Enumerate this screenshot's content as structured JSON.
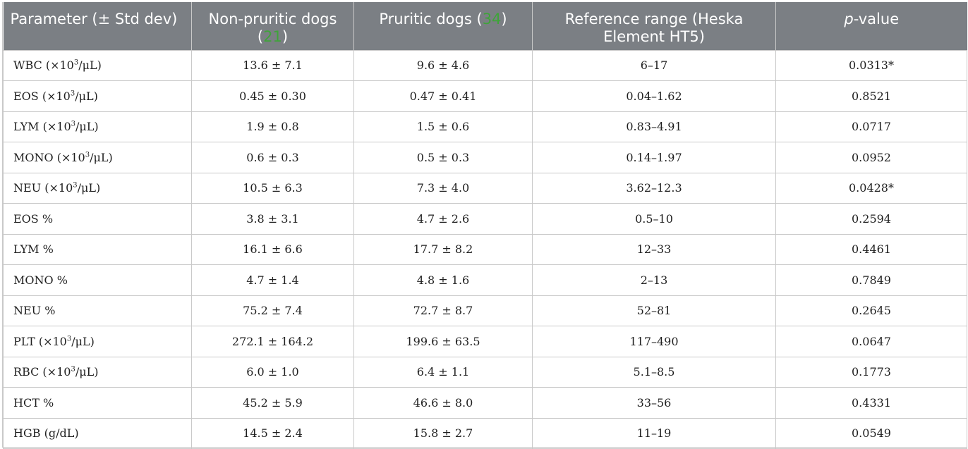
{
  "header": {
    "col1": "Parameter (± Std dev)",
    "col2_text": "Non-pruritic dogs (",
    "col2_n": "21",
    "col2_close": ")",
    "col3_text": "Pruritic dogs (",
    "col3_n": "34",
    "col3_close": ")",
    "col4": "Reference range (Heska Element HT5)",
    "col5_italic": "p",
    "col5_rest": "-value"
  },
  "colors": {
    "header_bg": "#7b7f84",
    "accent_green": "#3fa43a"
  },
  "rows": [
    {
      "param_pre": "WBC (×10",
      "sup": "3",
      "param_post": "/μL)",
      "non": "13.6 ± 7.1",
      "pru": "9.6 ± 4.6",
      "ref": "6–17",
      "p": "0.0313*"
    },
    {
      "param_pre": "EOS (×10",
      "sup": "3",
      "param_post": "/μL)",
      "non": "0.45 ± 0.30",
      "pru": "0.47 ± 0.41",
      "ref": "0.04–1.62",
      "p": "0.8521"
    },
    {
      "param_pre": "LYM (×10",
      "sup": "3",
      "param_post": "/μL)",
      "non": "1.9 ± 0.8",
      "pru": "1.5 ± 0.6",
      "ref": "0.83–4.91",
      "p": "0.0717"
    },
    {
      "param_pre": "MONO (×10",
      "sup": "3",
      "param_post": "/μL)",
      "non": "0.6 ± 0.3",
      "pru": "0.5 ± 0.3",
      "ref": "0.14–1.97",
      "p": "0.0952"
    },
    {
      "param_pre": "NEU (×10",
      "sup": "3",
      "param_post": "/μL)",
      "non": "10.5 ± 6.3",
      "pru": "7.3 ± 4.0",
      "ref": "3.62–12.3",
      "p": "0.0428*"
    },
    {
      "param_pre": "EOS %",
      "sup": "",
      "param_post": "",
      "non": "3.8 ± 3.1",
      "pru": "4.7 ± 2.6",
      "ref": "0.5–10",
      "p": "0.2594"
    },
    {
      "param_pre": "LYM %",
      "sup": "",
      "param_post": "",
      "non": "16.1 ± 6.6",
      "pru": "17.7 ± 8.2",
      "ref": "12–33",
      "p": "0.4461"
    },
    {
      "param_pre": "MONO %",
      "sup": "",
      "param_post": "",
      "non": "4.7 ± 1.4",
      "pru": "4.8 ± 1.6",
      "ref": "2–13",
      "p": "0.7849"
    },
    {
      "param_pre": "NEU %",
      "sup": "",
      "param_post": "",
      "non": "75.2 ± 7.4",
      "pru": "72.7 ± 8.7",
      "ref": "52–81",
      "p": "0.2645"
    },
    {
      "param_pre": "PLT (×10",
      "sup": "3",
      "param_post": "/μL)",
      "non": "272.1 ± 164.2",
      "pru": "199.6 ± 63.5",
      "ref": "117–490",
      "p": "0.0647"
    },
    {
      "param_pre": "RBC (×10",
      "sup": "3",
      "param_post": "/μL)",
      "non": "6.0 ± 1.0",
      "pru": "6.4 ± 1.1",
      "ref": "5.1–8.5",
      "p": "0.1773"
    },
    {
      "param_pre": "HCT %",
      "sup": "",
      "param_post": "",
      "non": "45.2 ± 5.9",
      "pru": "46.6 ± 8.0",
      "ref": "33–56",
      "p": "0.4331"
    },
    {
      "param_pre": "HGB (g/dL)",
      "sup": "",
      "param_post": "",
      "non": "14.5 ± 2.4",
      "pru": "15.8 ± 2.7",
      "ref": "11–19",
      "p": "0.0549"
    }
  ]
}
